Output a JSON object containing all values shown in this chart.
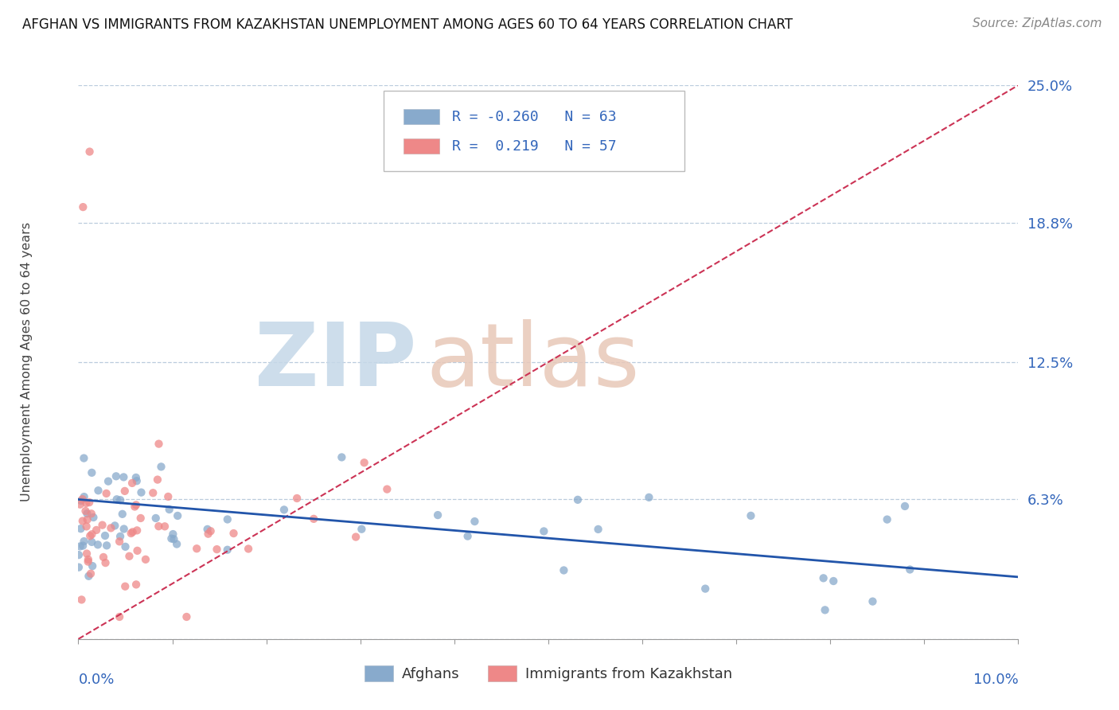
{
  "title": "AFGHAN VS IMMIGRANTS FROM KAZAKHSTAN UNEMPLOYMENT AMONG AGES 60 TO 64 YEARS CORRELATION CHART",
  "source": "Source: ZipAtlas.com",
  "ylabel": "Unemployment Among Ages 60 to 64 years",
  "ytick_values": [
    0.0,
    6.3,
    12.5,
    18.8,
    25.0
  ],
  "ytick_labels": [
    "",
    "6.3%",
    "12.5%",
    "18.8%",
    "25.0%"
  ],
  "xmin": 0.0,
  "xmax": 10.0,
  "ymin": 0.0,
  "ymax": 25.0,
  "legend_blue_r": "-0.260",
  "legend_blue_n": "63",
  "legend_pink_r": " 0.219",
  "legend_pink_n": "57",
  "color_blue": "#88AACC",
  "color_pink": "#EE8888",
  "color_trendline_blue": "#2255AA",
  "color_trendline_pink": "#CC3355",
  "watermark_zip_color": "#C5D8E8",
  "watermark_atlas_color": "#E8C8B8",
  "blue_trend_x0": 0.0,
  "blue_trend_y0": 6.3,
  "blue_trend_x1": 10.0,
  "blue_trend_y1": 2.8,
  "pink_trend_x0": 0.0,
  "pink_trend_y0": 0.0,
  "pink_trend_x1": 10.0,
  "pink_trend_y1": 25.0
}
